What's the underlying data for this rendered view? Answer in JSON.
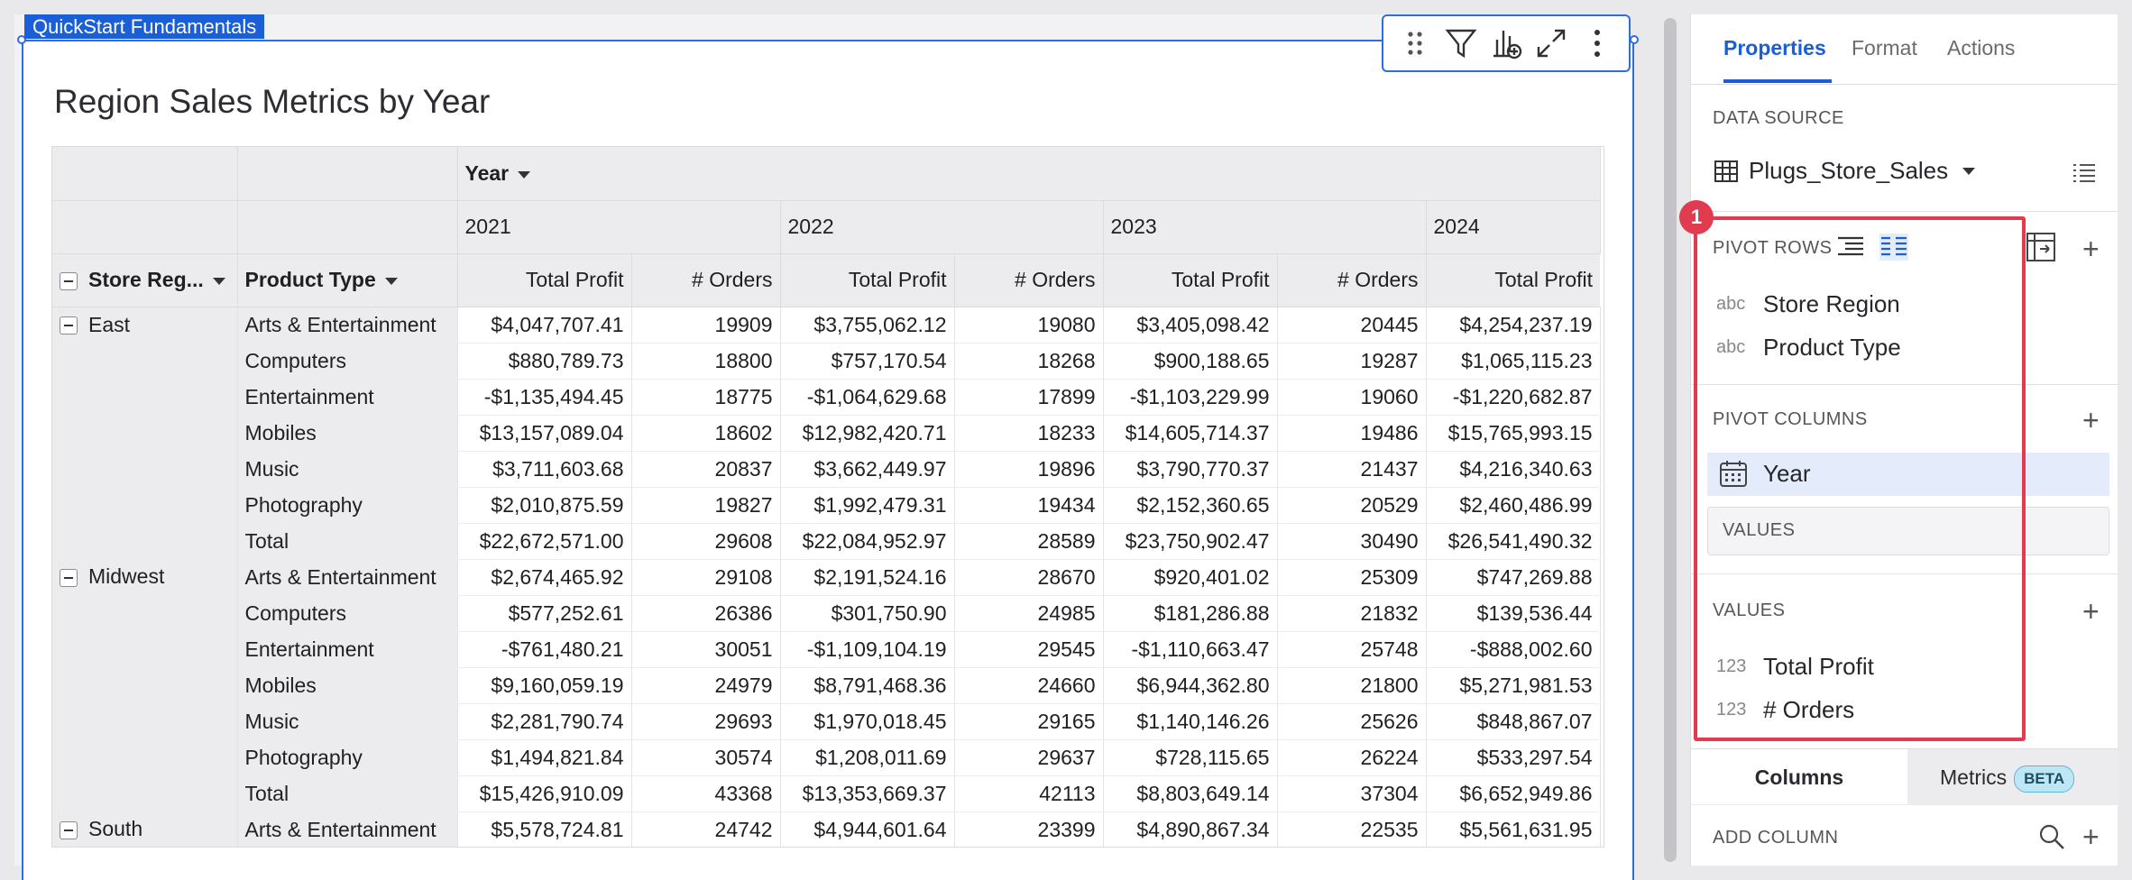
{
  "workbook_tag": "QuickStart Fundamentals",
  "widget": {
    "title": "Region Sales Metrics by Year"
  },
  "pivot": {
    "column_group_label": "Year",
    "years": [
      "2021",
      "2022",
      "2023",
      "2024"
    ],
    "row_headers": [
      "Store Reg...",
      "Product Type"
    ],
    "measure_headers": [
      "Total Profit",
      "# Orders",
      "Total Profit",
      "# Orders",
      "Total Profit",
      "# Orders",
      "Total Profit"
    ],
    "rows": [
      {
        "region": "East",
        "product": "Arts & Entertainment",
        "cells": [
          "$4,047,707.41",
          "19909",
          "$3,755,062.12",
          "19080",
          "$3,405,098.42",
          "20445",
          "$4,254,237.19"
        ]
      },
      {
        "region": "",
        "product": "Computers",
        "cells": [
          "$880,789.73",
          "18800",
          "$757,170.54",
          "18268",
          "$900,188.65",
          "19287",
          "$1,065,115.23"
        ]
      },
      {
        "region": "",
        "product": "Entertainment",
        "cells": [
          "-$1,135,494.45",
          "18775",
          "-$1,064,629.68",
          "17899",
          "-$1,103,229.99",
          "19060",
          "-$1,220,682.87"
        ]
      },
      {
        "region": "",
        "product": "Mobiles",
        "cells": [
          "$13,157,089.04",
          "18602",
          "$12,982,420.71",
          "18233",
          "$14,605,714.37",
          "19486",
          "$15,765,993.15"
        ]
      },
      {
        "region": "",
        "product": "Music",
        "cells": [
          "$3,711,603.68",
          "20837",
          "$3,662,449.97",
          "19896",
          "$3,790,770.37",
          "21437",
          "$4,216,340.63"
        ]
      },
      {
        "region": "",
        "product": "Photography",
        "cells": [
          "$2,010,875.59",
          "19827",
          "$1,992,479.31",
          "19434",
          "$2,152,360.65",
          "20529",
          "$2,460,486.99"
        ]
      },
      {
        "region": "",
        "product": "Total",
        "cells": [
          "$22,672,571.00",
          "29608",
          "$22,084,952.97",
          "28589",
          "$23,750,902.47",
          "30490",
          "$26,541,490.32"
        ]
      },
      {
        "region": "Midwest",
        "product": "Arts & Entertainment",
        "cells": [
          "$2,674,465.92",
          "29108",
          "$2,191,524.16",
          "28670",
          "$920,401.02",
          "25309",
          "$747,269.88"
        ]
      },
      {
        "region": "",
        "product": "Computers",
        "cells": [
          "$577,252.61",
          "26386",
          "$301,750.90",
          "24985",
          "$181,286.88",
          "21832",
          "$139,536.44"
        ]
      },
      {
        "region": "",
        "product": "Entertainment",
        "cells": [
          "-$761,480.21",
          "30051",
          "-$1,109,104.19",
          "29545",
          "-$1,110,663.47",
          "25748",
          "-$888,002.60"
        ]
      },
      {
        "region": "",
        "product": "Mobiles",
        "cells": [
          "$9,160,059.19",
          "24979",
          "$8,791,468.36",
          "24660",
          "$6,944,362.80",
          "21800",
          "$5,271,981.53"
        ]
      },
      {
        "region": "",
        "product": "Music",
        "cells": [
          "$2,281,790.74",
          "29693",
          "$1,970,018.45",
          "29165",
          "$1,140,146.26",
          "25626",
          "$848,867.07"
        ]
      },
      {
        "region": "",
        "product": "Photography",
        "cells": [
          "$1,494,821.84",
          "30574",
          "$1,208,011.69",
          "29637",
          "$728,115.65",
          "26224",
          "$533,297.54"
        ]
      },
      {
        "region": "",
        "product": "Total",
        "cells": [
          "$15,426,910.09",
          "43368",
          "$13,353,669.37",
          "42113",
          "$8,803,649.14",
          "37304",
          "$6,652,949.86"
        ]
      },
      {
        "region": "South",
        "product": "Arts & Entertainment",
        "cells": [
          "$5,578,724.81",
          "24742",
          "$4,944,601.64",
          "23399",
          "$4,890,867.34",
          "22535",
          "$5,561,631.95"
        ]
      }
    ]
  },
  "panel": {
    "tabs": [
      "Properties",
      "Format",
      "Actions"
    ],
    "data_source_label": "DATA SOURCE",
    "data_source_name": "Plugs_Store_Sales",
    "pivot_rows_label": "PIVOT ROWS",
    "pivot_rows": [
      {
        "type": "abc",
        "name": "Store Region"
      },
      {
        "type": "abc",
        "name": "Product Type"
      }
    ],
    "pivot_columns_label": "PIVOT COLUMNS",
    "pivot_columns": [
      {
        "name": "Year"
      }
    ],
    "values_dropzone": "VALUES",
    "values_label": "VALUES",
    "values": [
      {
        "type": "123",
        "name": "Total Profit"
      },
      {
        "type": "123",
        "name": "# Orders"
      }
    ],
    "bottom_tabs": {
      "columns": "Columns",
      "metrics": "Metrics",
      "beta": "BETA"
    },
    "add_column_label": "ADD COLUMN"
  },
  "annotation": {
    "marker": "1",
    "color": "#e03b4f"
  },
  "colors": {
    "accent": "#1a5ed8",
    "selection": "#2d6fe0"
  }
}
